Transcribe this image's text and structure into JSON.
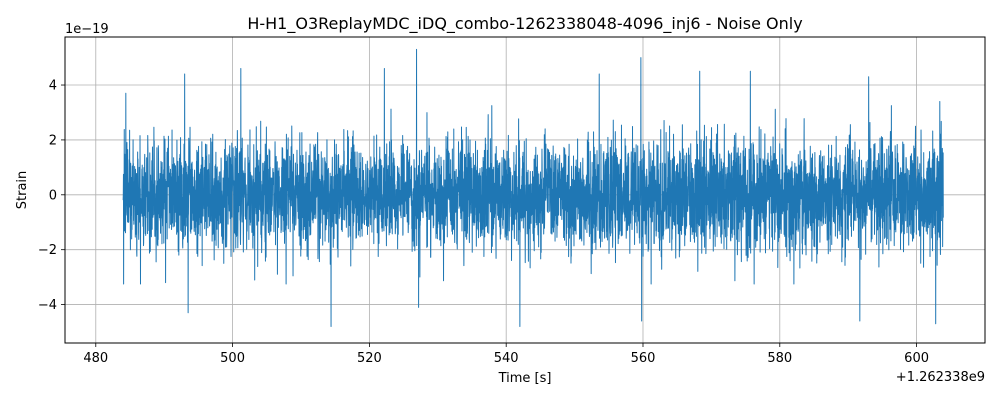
{
  "chart_data": {
    "type": "line",
    "title": "H-H1_O3ReplayMDC_iDQ_combo-1262338048-4096_inj6 - Noise Only",
    "xlabel": "Time [s]",
    "ylabel": "Strain",
    "x_offset_label": "+1.262338e9",
    "y_scale_label": "1e−19",
    "xlim": [
      475.5,
      610
    ],
    "ylim": [
      -5.4,
      5.75
    ],
    "x_ticks": [
      480,
      500,
      520,
      540,
      560,
      580,
      600
    ],
    "y_ticks": [
      -4,
      -2,
      0,
      2,
      4
    ],
    "x_tick_labels": [
      "480",
      "500",
      "520",
      "540",
      "560",
      "580",
      "600"
    ],
    "y_tick_labels": [
      "−4",
      "−2",
      "0",
      "2",
      "4"
    ],
    "grid": true,
    "series": [
      {
        "color": "#1f77b4",
        "x_start": 484.0,
        "x_end": 603.9,
        "typical_envelope": [
          -2.5,
          2.5
        ],
        "peaks": [
          {
            "x": 484.4,
            "y": 3.7
          },
          {
            "x": 493.0,
            "y": 4.4
          },
          {
            "x": 493.5,
            "y": -4.3
          },
          {
            "x": 501.2,
            "y": 4.6
          },
          {
            "x": 514.4,
            "y": -4.8
          },
          {
            "x": 522.2,
            "y": 4.6
          },
          {
            "x": 526.9,
            "y": 5.3
          },
          {
            "x": 527.2,
            "y": -4.1
          },
          {
            "x": 542.0,
            "y": -4.8
          },
          {
            "x": 553.6,
            "y": 4.4
          },
          {
            "x": 559.7,
            "y": 5.0
          },
          {
            "x": 559.8,
            "y": -4.6
          },
          {
            "x": 568.3,
            "y": 4.5
          },
          {
            "x": 575.7,
            "y": 4.5
          },
          {
            "x": 591.7,
            "y": -4.6
          },
          {
            "x": 593.0,
            "y": 4.3
          },
          {
            "x": 602.8,
            "y": -4.7
          },
          {
            "x": 603.4,
            "y": 3.4
          }
        ]
      }
    ]
  }
}
